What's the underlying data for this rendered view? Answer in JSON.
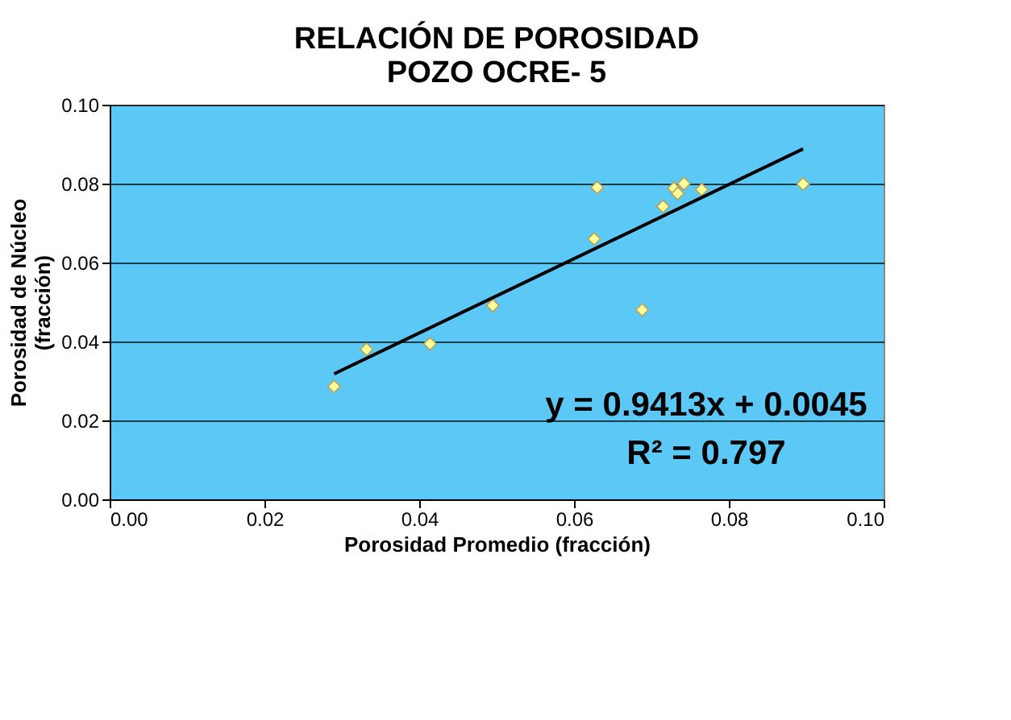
{
  "chart_data": {
    "type": "scatter",
    "title": [
      "RELACIÓN DE POROSIDAD",
      "POZO OCRE- 5"
    ],
    "xlabel": "Porosidad Promedio (fracción)",
    "ylabel": [
      "Porosidad de Núcleo",
      "(fracción)"
    ],
    "xlim": [
      0,
      0.1
    ],
    "xticks": [
      {
        "value": 0,
        "label": "0.00"
      },
      {
        "value": 0.02,
        "label": "0.02"
      },
      {
        "value": 0.04,
        "label": "0.04"
      },
      {
        "value": 0.06,
        "label": "0.06"
      },
      {
        "value": 0.08,
        "label": "0.08"
      },
      {
        "value": 0.1,
        "label": "0.10"
      }
    ],
    "ylim": [
      0,
      0.1
    ],
    "yticks": [
      {
        "value": 0,
        "label": "0.00"
      },
      {
        "value": 0.02,
        "label": "0.02"
      },
      {
        "value": 0.04,
        "label": "0.04"
      },
      {
        "value": 0.06,
        "label": "0.06"
      },
      {
        "value": 0.08,
        "label": "0.08"
      },
      {
        "value": 0.1,
        "label": "0.10"
      }
    ],
    "grid": "y",
    "marker": "diamond",
    "series": [
      {
        "color": "#ffff99",
        "x": [
          0.029,
          0.0332,
          0.0414,
          0.0495,
          0.063,
          0.0626,
          0.0688,
          0.0715,
          0.0729,
          0.0734,
          0.0742,
          0.0765,
          0.0896
        ],
        "values": [
          0.0286,
          0.038,
          0.0394,
          0.0491,
          0.079,
          0.066,
          0.048,
          0.0742,
          0.0788,
          0.0775,
          0.08,
          0.0785,
          0.0799
        ]
      },
      {
        "type": "line",
        "marker": "none",
        "line_style": "solid",
        "color": "#000000",
        "x": [
          0.029,
          0.0896
        ],
        "values": [
          0.0318,
          0.0888
        ]
      }
    ],
    "annotations": [
      "y = 0.9413x + 0.0045",
      "R² = 0.797"
    ]
  }
}
